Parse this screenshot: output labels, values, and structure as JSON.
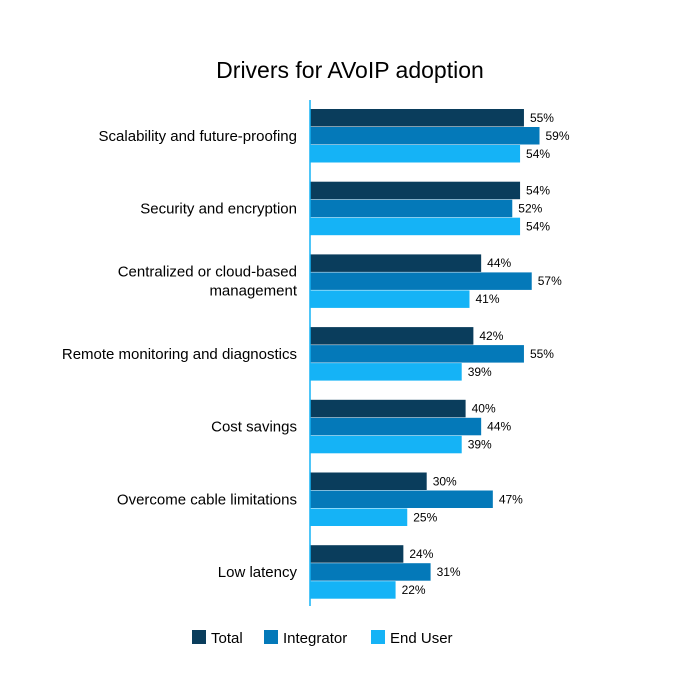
{
  "chart_data": {
    "type": "bar",
    "orientation": "horizontal",
    "title": "Drivers for AVoIP adoption",
    "xlabel": "",
    "ylabel": "",
    "xlim": [
      0,
      100
    ],
    "grid": false,
    "legend_position": "bottom",
    "categories": [
      [
        "Scalability and future-proofing"
      ],
      [
        "Security and encryption"
      ],
      [
        "Centralized or cloud-based",
        "management"
      ],
      [
        "Remote monitoring and diagnostics"
      ],
      [
        "Cost savings"
      ],
      [
        "Overcome cable limitations"
      ],
      [
        "Low latency"
      ]
    ],
    "series": [
      {
        "name": "Total",
        "color": "#0a3d5c",
        "values": [
          55,
          54,
          44,
          42,
          40,
          30,
          24
        ],
        "labels": [
          "55%",
          "54%",
          "44%",
          "42%",
          "40%",
          "30%",
          "24%"
        ]
      },
      {
        "name": "Integrator",
        "color": "#0479b9",
        "values": [
          59,
          52,
          57,
          55,
          44,
          47,
          31
        ],
        "labels": [
          "59%",
          "52%",
          "57%",
          "55%",
          "44%",
          "47%",
          "31%"
        ]
      },
      {
        "name": "End User",
        "color": "#15b3f6",
        "values": [
          54,
          54,
          41,
          39,
          39,
          25,
          22
        ],
        "labels": [
          "54%",
          "54%",
          "41%",
          "39%",
          "39%",
          "25%",
          "22%"
        ]
      }
    ],
    "axis_color": "#15b3f6"
  }
}
